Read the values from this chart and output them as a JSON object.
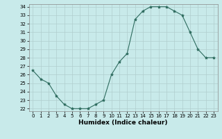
{
  "x": [
    0,
    1,
    2,
    3,
    4,
    5,
    6,
    7,
    8,
    9,
    10,
    11,
    12,
    13,
    14,
    15,
    16,
    17,
    18,
    19,
    20,
    21,
    22,
    23
  ],
  "y": [
    26.5,
    25.5,
    25.0,
    23.5,
    22.5,
    22.0,
    22.0,
    22.0,
    22.5,
    23.0,
    26.0,
    27.5,
    28.5,
    32.5,
    33.5,
    34.0,
    34.0,
    34.0,
    33.5,
    33.0,
    31.0,
    29.0,
    28.0,
    28.0
  ],
  "line_color": "#2d6b5e",
  "marker": "*",
  "marker_size": 3,
  "bg_color": "#c8eaea",
  "grid_color": "#b0cece",
  "xlabel": "Humidex (Indice chaleur)",
  "xlim": [
    -0.5,
    23.5
  ],
  "ylim": [
    21.7,
    34.3
  ],
  "yticks": [
    22,
    23,
    24,
    25,
    26,
    27,
    28,
    29,
    30,
    31,
    32,
    33,
    34
  ],
  "xticks": [
    0,
    1,
    2,
    3,
    4,
    5,
    6,
    7,
    8,
    9,
    10,
    11,
    12,
    13,
    14,
    15,
    16,
    17,
    18,
    19,
    20,
    21,
    22,
    23
  ]
}
